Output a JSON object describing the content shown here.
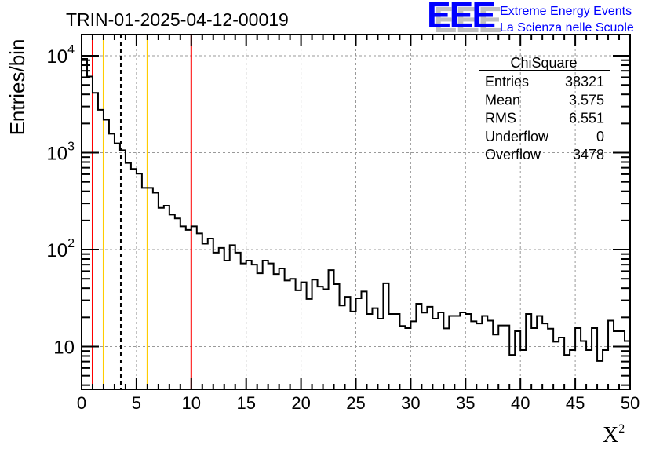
{
  "chart_data": {
    "type": "bar",
    "style": "step-histogram",
    "title": "TRIN-01-2025-04-12-00019",
    "xlabel": "X",
    "xlabel_superscript": "2",
    "ylabel": "Entries/bin",
    "xlim": [
      0,
      50
    ],
    "ylim": [
      3.62,
      16560
    ],
    "yscale": "log",
    "grid": true,
    "bin_width": 0.5,
    "x_ticks": [
      "0",
      "5",
      "10",
      "15",
      "20",
      "25",
      "30",
      "35",
      "40",
      "45",
      "50"
    ],
    "y_ticks": [
      {
        "base": "10",
        "exp": "4",
        "value": 10000
      },
      {
        "base": "10",
        "exp": "3",
        "value": 1000
      },
      {
        "base": "10",
        "exp": "2",
        "value": 100
      },
      {
        "base": "10",
        "exp": "",
        "value": 10
      }
    ],
    "values": [
      9300,
      6100,
      4150,
      2770,
      2190,
      1570,
      1250,
      1060,
      783,
      680,
      607,
      433,
      433,
      387,
      270,
      284,
      230,
      210,
      174,
      160,
      174,
      147,
      115,
      130,
      93,
      104,
      77,
      111,
      93,
      72,
      77,
      70,
      57,
      77,
      72,
      56,
      64,
      48,
      50,
      38,
      46,
      31,
      49,
      41.5,
      39,
      61.5,
      44,
      26.5,
      32.6,
      23,
      31.5,
      37,
      21.7,
      24.9,
      19.4,
      45,
      21.7,
      21.7,
      16.3,
      15.5,
      18.2,
      27.6,
      22.4,
      25.7,
      19.4,
      22.5,
      15.4,
      20.7,
      20.7,
      22.5,
      21.7,
      18.2,
      17.3,
      20.7,
      18.5,
      13.3,
      16.5,
      16.5,
      8.2,
      14.4,
      9.2,
      21.7,
      15.5,
      20.7,
      17.3,
      15.3,
      11.2,
      12.4,
      8.2,
      9.2,
      15.5,
      11.4,
      9.2,
      15.5,
      7.1,
      9.2,
      18.5,
      14.4,
      14.4,
      11.4
    ],
    "vertical_lines": [
      {
        "x": 1,
        "color": "#ff0000",
        "style": "solid"
      },
      {
        "x": 2,
        "color": "#ffcc00",
        "style": "solid"
      },
      {
        "x": 3.575,
        "color": "#000000",
        "style": "dashed"
      },
      {
        "x": 6,
        "color": "#ffcc00",
        "style": "solid"
      },
      {
        "x": 10,
        "color": "#ff0000",
        "style": "solid"
      }
    ],
    "stats": {
      "title": "ChiSquare",
      "rows": [
        {
          "label": "Entries",
          "value": "38321"
        },
        {
          "label": "Mean",
          "value": "3.575"
        },
        {
          "label": "RMS",
          "value": "6.551"
        },
        {
          "label": "Underflow",
          "value": "0"
        },
        {
          "label": "Overflow",
          "value": "3478"
        }
      ]
    }
  },
  "logo": {
    "mark": "EEE",
    "line1": "Extreme Energy Events",
    "line2": "La Scienza nelle Scuole",
    "color": "#0000ff",
    "shadow_color": "#c0c0c0"
  }
}
